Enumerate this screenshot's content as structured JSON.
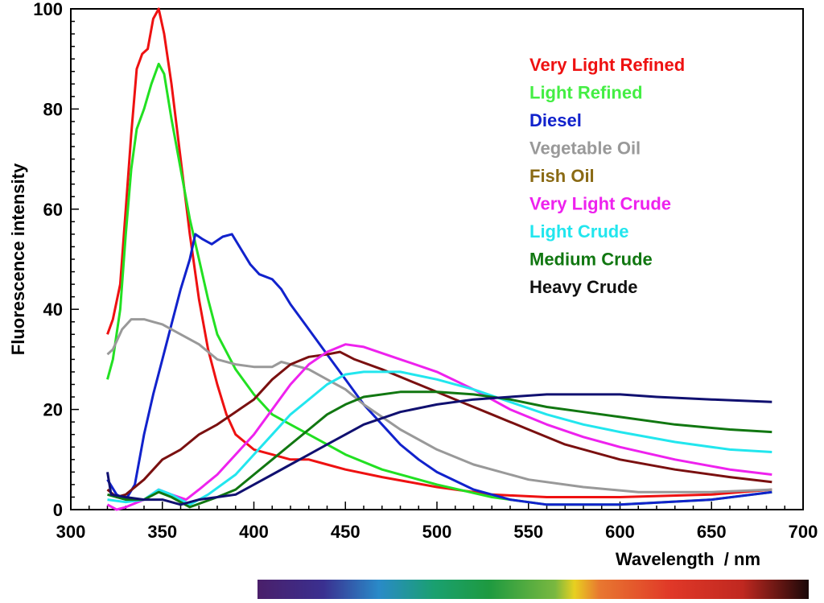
{
  "chart_data": {
    "type": "line",
    "title": "",
    "xlabel": "Wavelength  / nm",
    "ylabel": "Fluorescence intensity",
    "xlim": [
      300,
      700
    ],
    "ylim": [
      0,
      100
    ],
    "xticks": [
      300,
      350,
      400,
      450,
      500,
      550,
      600,
      650,
      700
    ],
    "yticks": [
      0,
      20,
      40,
      60,
      80,
      100
    ],
    "grid": false,
    "legend_position": "top-right",
    "spectrum_colorbar": true,
    "series": [
      {
        "name": "Very Light Refined",
        "color": "#ee1111",
        "legend_color": "#ee1111",
        "x": [
          320,
          323,
          327,
          330,
          333,
          336,
          339,
          342,
          345,
          348,
          351,
          355,
          360,
          365,
          370,
          375,
          380,
          385,
          390,
          400,
          410,
          420,
          430,
          440,
          450,
          470,
          500,
          530,
          560,
          600,
          650,
          683
        ],
        "y": [
          35,
          38,
          45,
          60,
          75,
          88,
          91,
          92,
          98,
          100,
          95,
          85,
          70,
          55,
          42,
          32,
          25,
          19,
          15,
          12,
          11,
          10,
          10,
          9,
          8,
          6.5,
          4.5,
          3,
          2.5,
          2.5,
          3,
          4
        ]
      },
      {
        "name": "Light Refined",
        "color": "#22e022",
        "legend_color": "#44ee44",
        "x": [
          320,
          323,
          327,
          330,
          333,
          336,
          340,
          344,
          348,
          351,
          355,
          360,
          365,
          370,
          375,
          380,
          390,
          400,
          410,
          420,
          430,
          440,
          450,
          470,
          500,
          530,
          560,
          600,
          650,
          683
        ],
        "y": [
          26,
          30,
          40,
          55,
          68,
          76,
          80,
          85,
          89,
          87,
          78,
          68,
          58,
          50,
          42,
          35,
          28,
          23,
          19,
          17,
          15,
          13,
          11,
          8,
          5,
          2.5,
          1,
          1,
          2,
          3.5
        ]
      },
      {
        "name": "Diesel",
        "color": "#1122cc",
        "legend_color": "#1122cc",
        "x": [
          320,
          325,
          330,
          335,
          340,
          345,
          350,
          355,
          360,
          365,
          368,
          372,
          377,
          383,
          388,
          393,
          398,
          403,
          410,
          415,
          420,
          430,
          440,
          450,
          460,
          470,
          480,
          490,
          500,
          520,
          540,
          560,
          600,
          650,
          683
        ],
        "y": [
          6,
          3,
          2,
          5,
          15,
          23,
          30,
          37,
          44,
          50,
          55,
          54,
          53,
          54.5,
          55,
          52,
          49,
          47,
          46,
          44,
          41,
          36,
          31,
          26,
          21,
          17,
          13,
          10,
          7.5,
          4,
          2,
          1,
          1,
          2,
          3.5
        ]
      },
      {
        "name": "Vegetable Oil",
        "color": "#999999",
        "legend_color": "#999999",
        "x": [
          320,
          323,
          328,
          333,
          340,
          345,
          350,
          360,
          370,
          380,
          390,
          400,
          410,
          415,
          420,
          430,
          440,
          450,
          460,
          470,
          480,
          500,
          520,
          550,
          580,
          610,
          650,
          683
        ],
        "y": [
          31,
          32,
          36,
          38,
          38,
          37.5,
          37,
          35,
          33,
          30,
          29,
          28.5,
          28.5,
          29.5,
          29,
          28,
          26,
          24,
          21,
          18.5,
          16,
          12,
          9,
          6,
          4.5,
          3.5,
          3.5,
          4
        ]
      },
      {
        "name": "Fish Oil",
        "color": "#7a1010",
        "legend_color": "#8a6a14",
        "x": [
          320,
          325,
          330,
          340,
          350,
          360,
          370,
          380,
          390,
          400,
          410,
          420,
          430,
          440,
          447,
          455,
          470,
          490,
          510,
          530,
          550,
          570,
          600,
          630,
          660,
          683
        ],
        "y": [
          4,
          2.5,
          3,
          6,
          10,
          12,
          15,
          17,
          19.5,
          22,
          26,
          29,
          30.5,
          31,
          31.5,
          30,
          28,
          25,
          22,
          19,
          16,
          13,
          10,
          8,
          6.5,
          5.5
        ]
      },
      {
        "name": "Very Light Crude",
        "color": "#ee22ee",
        "legend_color": "#ee22ee",
        "x": [
          320,
          325,
          330,
          340,
          348,
          355,
          363,
          370,
          380,
          390,
          400,
          410,
          420,
          430,
          440,
          450,
          460,
          480,
          500,
          520,
          540,
          560,
          580,
          600,
          630,
          660,
          683
        ],
        "y": [
          1,
          0,
          0.5,
          2,
          4,
          3,
          2,
          4,
          7,
          11,
          15,
          20,
          25,
          29,
          31.5,
          33,
          32.5,
          30,
          27.5,
          24,
          20,
          17,
          14.5,
          12.5,
          10,
          8,
          7
        ]
      },
      {
        "name": "Light Crude",
        "color": "#22e6ee",
        "legend_color": "#22e6ee",
        "x": [
          320,
          330,
          340,
          348,
          355,
          365,
          375,
          390,
          400,
          410,
          420,
          430,
          440,
          450,
          460,
          480,
          500,
          520,
          540,
          560,
          580,
          600,
          630,
          660,
          683
        ],
        "y": [
          2,
          1.5,
          2,
          4,
          3,
          1,
          3,
          7,
          11,
          15,
          19,
          22,
          25,
          27,
          27.5,
          27.5,
          26,
          24,
          21.5,
          19,
          17,
          15.5,
          13.5,
          12,
          11.5
        ]
      },
      {
        "name": "Medium Crude",
        "color": "#117711",
        "legend_color": "#117711",
        "x": [
          320,
          330,
          340,
          348,
          355,
          365,
          380,
          390,
          400,
          410,
          420,
          430,
          440,
          450,
          460,
          480,
          500,
          520,
          540,
          560,
          580,
          600,
          630,
          660,
          683
        ],
        "y": [
          3,
          2,
          2,
          3.5,
          2.5,
          0.5,
          2.5,
          4,
          7,
          10,
          13,
          16,
          19,
          21,
          22.5,
          23.5,
          23.5,
          23,
          22,
          20.5,
          19.5,
          18.5,
          17,
          16,
          15.5
        ]
      },
      {
        "name": "Heavy Crude",
        "color": "#101070",
        "legend_color": "#111111",
        "x": [
          320,
          322,
          330,
          340,
          350,
          360,
          370,
          380,
          390,
          400,
          410,
          420,
          430,
          440,
          450,
          460,
          480,
          500,
          520,
          540,
          560,
          580,
          600,
          620,
          650,
          683
        ],
        "y": [
          7.5,
          3,
          2.5,
          2,
          2,
          1,
          2,
          2.5,
          3,
          5,
          7,
          9,
          11,
          13,
          15,
          17,
          19.5,
          21,
          22,
          22.5,
          23,
          23,
          23,
          22.5,
          22,
          21.5
        ]
      }
    ]
  }
}
